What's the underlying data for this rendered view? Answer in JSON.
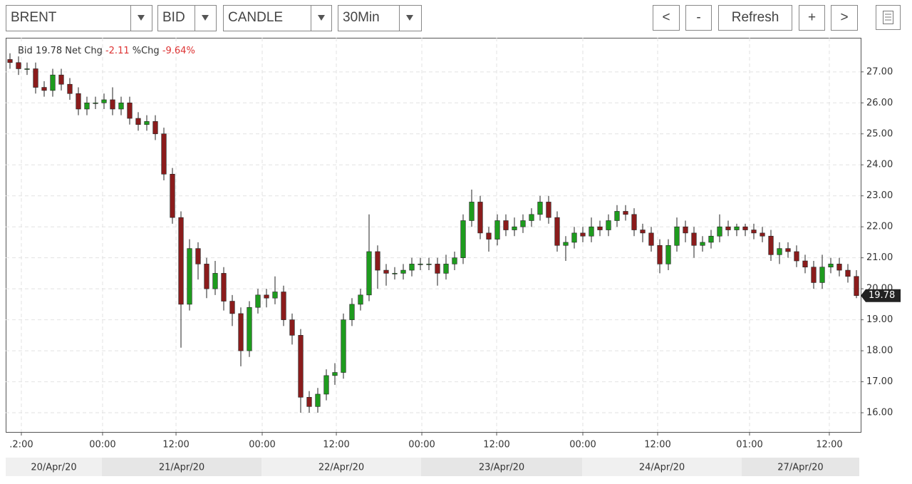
{
  "toolbar": {
    "symbol": "BRENT",
    "side": "BID",
    "style": "CANDLE",
    "interval": "30Min",
    "buttons": [
      "<",
      "-",
      "Refresh",
      "+",
      ">"
    ]
  },
  "chart_data": {
    "type": "candlestick",
    "quote": {
      "bid_label": "Bid",
      "bid": 19.78,
      "net_label": "Net Chg",
      "net": -2.11,
      "pct_label": "%Chg",
      "pct": "-9.64%"
    },
    "up_color": "#1e9b1e",
    "down_color": "#8a1c1c",
    "open": [
      27.4,
      27.3,
      27.1,
      27.1,
      26.5,
      26.4,
      26.9,
      26.6,
      26.3,
      25.8,
      26.0,
      26.0,
      26.1,
      25.8,
      26.0,
      25.5,
      25.3,
      25.4,
      25.0,
      23.7,
      22.3,
      19.5,
      21.3,
      20.8,
      20.0,
      20.5,
      19.6,
      19.2,
      18.0,
      19.4,
      19.8,
      19.7,
      19.9,
      19.0,
      18.5,
      16.5,
      16.2,
      16.6,
      17.2,
      17.3,
      19.0,
      19.5,
      19.8,
      21.2,
      20.6,
      20.5,
      20.5,
      20.6,
      20.8,
      20.8,
      20.8,
      20.5,
      20.8,
      21.0,
      22.2,
      22.8,
      21.8,
      21.6,
      22.2,
      21.9,
      22.0,
      22.2,
      22.4,
      22.8,
      22.3,
      21.4,
      21.5,
      21.8,
      21.7,
      22.0,
      21.9,
      22.2,
      22.5,
      22.4,
      21.9,
      21.8,
      21.4,
      20.8,
      21.4,
      22.0,
      21.8,
      21.4,
      21.5,
      21.7,
      22.0,
      21.9,
      22.0,
      21.9,
      21.8,
      21.7,
      21.1,
      21.3,
      21.2,
      20.9,
      20.7,
      20.2,
      20.7,
      20.8,
      20.6,
      20.4
    ],
    "high": [
      27.6,
      27.5,
      27.3,
      27.3,
      26.7,
      27.1,
      27.1,
      26.8,
      26.5,
      26.2,
      26.2,
      26.3,
      26.5,
      26.2,
      26.2,
      25.7,
      25.6,
      25.6,
      25.2,
      23.9,
      22.5,
      21.6,
      21.5,
      21.0,
      20.9,
      20.7,
      19.8,
      19.4,
      19.6,
      20.0,
      20.0,
      20.4,
      20.1,
      19.2,
      18.7,
      16.7,
      16.8,
      17.4,
      17.6,
      19.2,
      19.7,
      20.0,
      22.4,
      21.4,
      20.8,
      20.7,
      20.8,
      21.0,
      21.0,
      21.0,
      21.0,
      21.1,
      21.2,
      22.4,
      23.2,
      23.0,
      22.0,
      22.4,
      22.4,
      22.3,
      22.4,
      22.6,
      23.0,
      23.0,
      22.5,
      21.7,
      22.0,
      22.0,
      22.3,
      22.2,
      22.4,
      22.7,
      22.7,
      22.6,
      22.1,
      22.0,
      21.6,
      21.6,
      22.3,
      22.2,
      22.0,
      21.7,
      21.9,
      22.4,
      22.2,
      22.1,
      22.1,
      22.1,
      22.0,
      21.9,
      21.5,
      21.5,
      21.4,
      21.1,
      20.9,
      21.1,
      21.0,
      21.0,
      20.8,
      20.6
    ],
    "low": [
      27.1,
      26.9,
      26.9,
      26.3,
      26.2,
      26.2,
      26.4,
      26.1,
      25.6,
      25.6,
      25.8,
      25.8,
      25.6,
      25.6,
      25.3,
      25.1,
      25.1,
      24.8,
      23.5,
      22.1,
      18.1,
      19.3,
      20.3,
      19.7,
      19.8,
      19.3,
      18.8,
      17.5,
      17.8,
      19.2,
      19.4,
      19.5,
      18.8,
      18.2,
      16.0,
      16.0,
      16.0,
      16.4,
      16.9,
      17.1,
      18.8,
      19.3,
      19.6,
      20.0,
      20.1,
      20.3,
      20.3,
      20.4,
      20.6,
      20.6,
      20.1,
      20.3,
      20.6,
      20.8,
      22.0,
      21.6,
      21.2,
      21.4,
      21.7,
      21.7,
      21.8,
      22.0,
      22.2,
      22.1,
      21.2,
      20.9,
      21.3,
      21.5,
      21.5,
      21.7,
      21.7,
      22.0,
      22.2,
      21.7,
      21.5,
      21.2,
      20.5,
      20.6,
      21.2,
      21.5,
      21.0,
      21.2,
      21.3,
      21.5,
      21.7,
      21.7,
      21.7,
      21.6,
      21.5,
      20.9,
      20.8,
      21.0,
      20.7,
      20.5,
      20.0,
      20.0,
      20.5,
      20.4,
      20.2,
      19.7
    ],
    "close": [
      27.3,
      27.1,
      27.1,
      26.5,
      26.4,
      26.9,
      26.6,
      26.3,
      25.8,
      26.0,
      26.0,
      26.1,
      25.8,
      26.0,
      25.5,
      25.3,
      25.4,
      25.0,
      23.7,
      22.3,
      19.5,
      21.3,
      20.8,
      20.0,
      20.5,
      19.6,
      19.2,
      18.0,
      19.4,
      19.8,
      19.7,
      19.9,
      19.0,
      18.5,
      16.5,
      16.2,
      16.6,
      17.2,
      17.3,
      19.0,
      19.5,
      19.8,
      21.2,
      20.6,
      20.5,
      20.5,
      20.6,
      20.8,
      20.8,
      20.8,
      20.5,
      20.8,
      21.0,
      22.2,
      22.8,
      21.8,
      21.6,
      22.2,
      21.9,
      22.0,
      22.2,
      22.4,
      22.8,
      22.3,
      21.4,
      21.5,
      21.8,
      21.7,
      22.0,
      21.9,
      22.2,
      22.5,
      22.4,
      21.9,
      21.8,
      21.4,
      20.8,
      21.4,
      22.0,
      21.8,
      21.4,
      21.5,
      21.7,
      22.0,
      21.9,
      22.0,
      21.9,
      21.8,
      21.7,
      21.1,
      21.3,
      21.2,
      20.9,
      20.7,
      20.2,
      20.7,
      20.8,
      20.6,
      20.4,
      19.78
    ],
    "xlim": [
      -0.5,
      99.5
    ],
    "xticks": [
      {
        "value": 1.33,
        "label": ".2:00"
      },
      {
        "value": 10.83,
        "label": "00:00"
      },
      {
        "value": 19.42,
        "label": "12:00"
      },
      {
        "value": 29.5,
        "label": "00:00"
      },
      {
        "value": 38.17,
        "label": "12:00"
      },
      {
        "value": 48.17,
        "label": "00:00"
      },
      {
        "value": 56.92,
        "label": "12:00"
      },
      {
        "value": 67,
        "label": "00:00"
      },
      {
        "value": 75.75,
        "label": "12:00"
      },
      {
        "value": 86.5,
        "label": "01:00"
      },
      {
        "value": 95.83,
        "label": "12:00"
      }
    ],
    "date_bands": [
      {
        "label": "20/Apr/20",
        "start": -0.5,
        "end": 10.75
      },
      {
        "label": "21/Apr/20",
        "start": 10.75,
        "end": 29.42
      },
      {
        "label": "22/Apr/20",
        "start": 29.42,
        "end": 48.08
      },
      {
        "label": "23/Apr/20",
        "start": 48.08,
        "end": 66.92
      },
      {
        "label": "24/Apr/20",
        "start": 66.92,
        "end": 85.58
      },
      {
        "label": "27/Apr/20",
        "start": 85.58,
        "end": 99.33
      }
    ],
    "ylim": [
      15.38,
      28.1
    ],
    "yticks": [
      {
        "value": 16,
        "label": "16.00"
      },
      {
        "value": 17,
        "label": "17.00"
      },
      {
        "value": 18,
        "label": "18.00"
      },
      {
        "value": 19,
        "label": "19.00"
      },
      {
        "value": 20,
        "label": "20.00"
      },
      {
        "value": 21,
        "label": "21.00"
      },
      {
        "value": 22,
        "label": "22.00"
      },
      {
        "value": 23,
        "label": "23.00"
      },
      {
        "value": 24,
        "label": "24.00"
      },
      {
        "value": 25,
        "label": "25.00"
      },
      {
        "value": 26,
        "label": "26.00"
      },
      {
        "value": 27,
        "label": "27.00"
      }
    ],
    "grid": true
  }
}
